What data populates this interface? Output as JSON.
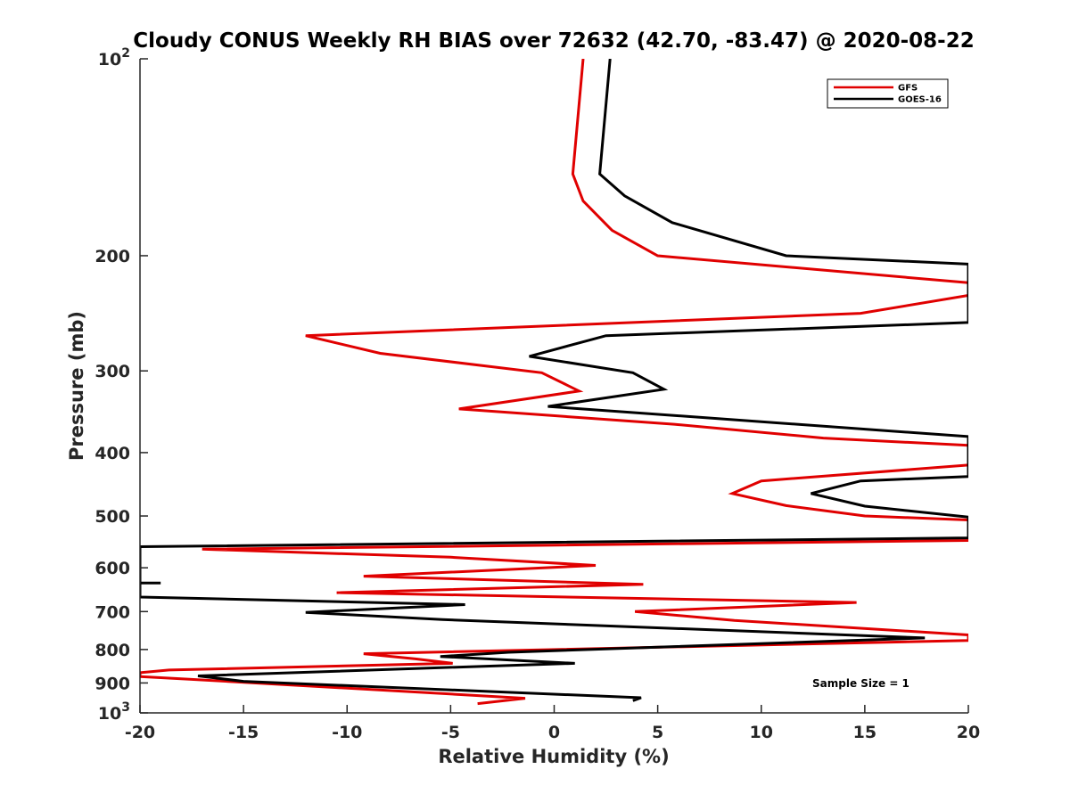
{
  "chart_data": {
    "type": "line",
    "title": "Cloudy CONUS Weekly RH BIAS over 72632 (42.70, -83.47) @ 2020-08-22",
    "xlabel": "Relative Humidity (%)",
    "ylabel": "Pressure (mb)",
    "xlim": [
      -20,
      20
    ],
    "ylim": [
      100,
      1000
    ],
    "yscale": "log",
    "y_reversed": true,
    "x_ticks": [
      -20,
      -15,
      -10,
      -5,
      0,
      5,
      10,
      15,
      20
    ],
    "x_tick_labels": [
      "-20",
      "-15",
      "-10",
      "-5",
      "0",
      "5",
      "10",
      "15",
      "20"
    ],
    "y_ticks": [
      100,
      200,
      300,
      400,
      500,
      600,
      700,
      800,
      900,
      1000
    ],
    "y_tick_labels": [
      {
        "base": "10",
        "exp": "2"
      },
      {
        "base": "200",
        "exp": ""
      },
      {
        "base": "300",
        "exp": ""
      },
      {
        "base": "400",
        "exp": ""
      },
      {
        "base": "500",
        "exp": ""
      },
      {
        "base": "600",
        "exp": ""
      },
      {
        "base": "700",
        "exp": ""
      },
      {
        "base": "800",
        "exp": ""
      },
      {
        "base": "900",
        "exp": ""
      },
      {
        "base": "10",
        "exp": "3"
      }
    ],
    "grid": false,
    "legend_position": "top-right",
    "annotation": "Sample Size = 1",
    "series": [
      {
        "name": "GFS",
        "color": "#e00000",
        "points": [
          [
            1.4,
            100
          ],
          [
            0.9,
            150
          ],
          [
            1.4,
            165
          ],
          [
            2.8,
            183
          ],
          [
            5.0,
            200
          ],
          [
            20.0,
            220
          ],
          [
            20.0,
            230
          ],
          [
            14.8,
            245
          ],
          [
            -12.0,
            265
          ],
          [
            -8.4,
            282
          ],
          [
            -0.6,
            302
          ],
          [
            1.2,
            322
          ],
          [
            -4.6,
            343
          ],
          [
            5.8,
            362
          ],
          [
            13.0,
            380
          ],
          [
            20.0,
            390
          ],
          [
            20.0,
            418
          ],
          [
            10.0,
            442
          ],
          [
            8.6,
            462
          ],
          [
            11.2,
            482
          ],
          [
            15.0,
            500
          ],
          [
            20.0,
            507
          ],
          [
            20.0,
            545
          ],
          [
            -17.0,
            562
          ],
          [
            -5.0,
            578
          ],
          [
            2.0,
            595
          ],
          [
            -9.2,
            618
          ],
          [
            4.3,
            636
          ],
          [
            -10.5,
            655
          ],
          [
            14.6,
            678
          ],
          [
            3.9,
            700
          ],
          [
            8.7,
            722
          ],
          [
            20.0,
            760
          ],
          [
            20.0,
            775
          ],
          [
            -9.2,
            812
          ],
          [
            -6.7,
            827
          ],
          [
            -4.9,
            840
          ],
          [
            -18.6,
            860
          ],
          [
            -20.0,
            868
          ],
          [
            -20.0,
            880
          ],
          [
            -17.7,
            888
          ],
          [
            -1.4,
            950
          ],
          [
            -3.7,
            968
          ]
        ]
      },
      {
        "name": "GOES-16",
        "color": "#000000",
        "points": [
          [
            2.7,
            100
          ],
          [
            2.2,
            150
          ],
          [
            3.4,
            162
          ],
          [
            5.7,
            178
          ],
          [
            11.2,
            200
          ],
          [
            20.0,
            206
          ],
          [
            20.0,
            253
          ],
          [
            2.5,
            265
          ],
          [
            -1.2,
            285
          ],
          [
            3.8,
            302
          ],
          [
            5.3,
            320
          ],
          [
            -0.3,
            340
          ],
          [
            20.0,
            378
          ],
          [
            20.0,
            435
          ],
          [
            14.8,
            442
          ],
          [
            12.4,
            462
          ],
          [
            15.0,
            483
          ],
          [
            20.0,
            502
          ],
          [
            20.0,
            540
          ],
          [
            -20.0,
            557
          ],
          [
            -20.0,
            633
          ],
          [
            -19.0,
            633
          ],
          [
            -20.0,
            633
          ],
          [
            -20.0,
            665
          ],
          [
            -4.3,
            683
          ],
          [
            -12.0,
            702
          ],
          [
            -5.4,
            720
          ],
          [
            17.9,
            768
          ],
          [
            -2.2,
            808
          ],
          [
            -5.5,
            820
          ],
          [
            1.0,
            840
          ],
          [
            -5.0,
            852
          ],
          [
            -17.2,
            878
          ],
          [
            -15.0,
            895
          ],
          [
            4.2,
            948
          ],
          [
            3.8,
            958
          ]
        ]
      }
    ]
  }
}
